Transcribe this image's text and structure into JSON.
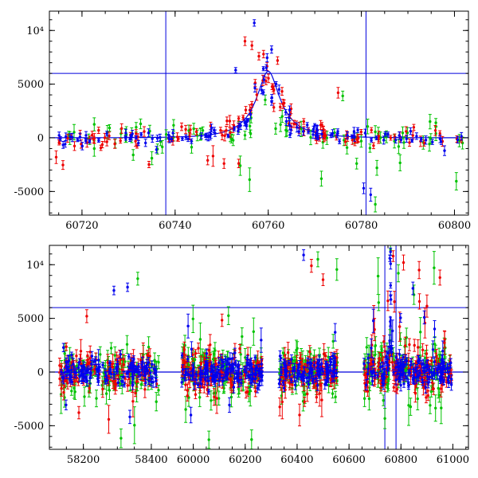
{
  "figure": {
    "background": "#ffffff",
    "axis_color": "#000000",
    "accent_line_color": "#0000dd"
  },
  "chart_data": [
    {
      "id": "top-panel",
      "type": "scatter",
      "title": "",
      "xlabel": "",
      "ylabel": "",
      "xlim": [
        60713,
        60803
      ],
      "ylim": [
        -7200,
        11800
      ],
      "x_ticks": {
        "major": [
          60720,
          60740,
          60760,
          60780,
          60800
        ],
        "labels": [
          "60720",
          "60740",
          "60760",
          "60780",
          "60800"
        ],
        "minor_step": 5
      },
      "y_ticks": {
        "major": [
          -5000,
          0,
          5000,
          10000
        ],
        "labels": [
          "-5000",
          "0",
          "5000",
          "10⁴"
        ],
        "minor_step": 1000
      },
      "hlines": [
        6000
      ],
      "vlines": [
        60738,
        60781
      ],
      "line_color": "#0000dd",
      "model": {
        "type": "paczynski",
        "t0": 60760,
        "tE": 8,
        "u0": 0.3,
        "F": 2536
      },
      "cluster_fields": "x0,x1,n,sigma,err,amp,jit,tail_frac,tail_lo,tail_hi",
      "series": [
        {
          "name": "green",
          "color": "#00c300",
          "seed": 21,
          "clusters": [
            [
              60714,
              60803,
              78,
              600,
              500,
              0.45,
              0.2,
              0.05,
              -4300,
              -1400
            ]
          ],
          "outliers": [
            [
              60783,
              -6200,
              700
            ],
            [
              60779,
              -2400,
              500
            ],
            [
              60754,
              -2600,
              900
            ],
            [
              60756,
              -3900,
              1100
            ],
            [
              60776,
              3900,
              450
            ],
            [
              60731,
              -1600,
              500
            ],
            [
              60735,
              -1900,
              600
            ],
            [
              60796,
              1400,
              400
            ]
          ]
        },
        {
          "name": "red",
          "color": "#ee0000",
          "seed": 11,
          "clusters": [
            [
              60714,
              60803,
              95,
              420,
              330,
              1,
              0.12,
              0.02,
              -2600,
              -1000
            ],
            [
              60750,
              60772,
              30,
              520,
              360,
              1,
              0.3,
              0,
              0,
              0
            ]
          ],
          "outliers": [
            [
              60747,
              -2100,
              420
            ],
            [
              60750.5,
              -2400,
              450
            ],
            [
              60755,
              9000,
              400
            ],
            [
              60756.5,
              8600,
              380
            ],
            [
              60758,
              7600,
              350
            ],
            [
              60759,
              7800,
              350
            ],
            [
              60762,
              7200,
              350
            ],
            [
              60775,
              4200,
              500
            ]
          ]
        },
        {
          "name": "blue",
          "color": "#0000ee",
          "seed": 31,
          "clusters": [
            [
              60714,
              60803,
              95,
              300,
              260,
              1,
              0.15,
              0.01,
              -1800,
              -900
            ],
            [
              60751,
              60771,
              26,
              520,
              300,
              1,
              0.35,
              0,
              0,
              0
            ]
          ],
          "outliers": [
            [
              60757,
              10700,
              300
            ],
            [
              60753,
              6300,
              250
            ],
            [
              60780.5,
              -4700,
              500
            ],
            [
              60782,
              -5300,
              600
            ],
            [
              60736,
              -1100,
              300
            ]
          ]
        }
      ]
    },
    {
      "id": "bottom-panel",
      "type": "scatter",
      "title": "",
      "xlabel": "",
      "ylabel": "",
      "xlim": [
        58100,
        61060
      ],
      "x_segments": [
        [
          58100,
          58470,
          0.0,
          0.3
        ],
        [
          59930,
          61060,
          0.3,
          1.0
        ]
      ],
      "ylim": [
        -7200,
        11800
      ],
      "x_ticks": {
        "major": [
          58200,
          58400,
          60000,
          60200,
          60400,
          60600,
          60800,
          61000
        ],
        "labels": [
          "58200",
          "58400",
          "60000",
          "60200",
          "60400",
          "60600",
          "60800",
          "61000"
        ],
        "minor_step": 50
      },
      "y_ticks": {
        "major": [
          -5000,
          0,
          5000,
          10000
        ],
        "labels": [
          "-5000",
          "0",
          "5000",
          "10⁴"
        ],
        "minor_step": 1000
      },
      "hlines": [
        6000
      ],
      "vlines": [
        60738,
        60781
      ],
      "line_color": "#0000dd",
      "model": {
        "type": "paczynski",
        "t0": 60760,
        "tE": 8,
        "u0": 0.3,
        "F": 2536
      },
      "cluster_fields": "x0,x1,n,sigma,err,amp,jit,tail_frac,tail_lo,tail_hi",
      "series": [
        {
          "name": "green",
          "color": "#00c300",
          "seed": 22,
          "clusters": [
            [
              58130,
              58425,
              100,
              1150,
              650,
              0,
              0,
              0.06,
              -6600,
              6600
            ],
            [
              59955,
              60265,
              110,
              1150,
              650,
              0,
              0,
              0.07,
              -6600,
              6600
            ],
            [
              60330,
              60560,
              85,
              1150,
              650,
              0,
              0,
              0.07,
              -6600,
              10600
            ],
            [
              60655,
              60995,
              120,
              1200,
              700,
              0.4,
              0.2,
              0.08,
              -6600,
              11200
            ]
          ],
          "outliers": [
            [
              58360,
              8700,
              600
            ],
            [
              60480,
              10500,
              700
            ],
            [
              60760,
              11400,
              500
            ],
            [
              60790,
              9200,
              800
            ],
            [
              60850,
              7200,
              900
            ],
            [
              60060,
              -6300,
              800
            ]
          ]
        },
        {
          "name": "red",
          "color": "#ee0000",
          "seed": 12,
          "clusters": [
            [
              58130,
              58425,
              110,
              900,
              520,
              0,
              0,
              0.05,
              -5300,
              5300
            ],
            [
              59955,
              60265,
              120,
              900,
              520,
              0,
              0,
              0.05,
              -5300,
              5300
            ],
            [
              60330,
              60560,
              95,
              900,
              520,
              0,
              0,
              0.06,
              -5300,
              9800
            ],
            [
              60655,
              60995,
              135,
              950,
              550,
              1,
              0.25,
              0.1,
              1500,
              10800
            ]
          ],
          "outliers": [
            [
              58210,
              5200,
              600
            ],
            [
              60455,
              9900,
              600
            ],
            [
              60500,
              8600,
              550
            ],
            [
              60770,
              10800,
              500
            ],
            [
              60810,
              10200,
              700
            ],
            [
              60870,
              9500,
              800
            ],
            [
              60950,
              8800,
              700
            ]
          ]
        },
        {
          "name": "blue",
          "color": "#0000ee",
          "seed": 32,
          "clusters": [
            [
              58130,
              58425,
              130,
              650,
              360,
              0,
              0,
              0.04,
              -4500,
              5500
            ],
            [
              59955,
              60265,
              140,
              650,
              360,
              0,
              0,
              0.04,
              -4500,
              4500
            ],
            [
              60330,
              60560,
              100,
              650,
              360,
              0,
              0,
              0.04,
              -4500,
              6500
            ],
            [
              60655,
              60995,
              150,
              700,
              380,
              1,
              0.3,
              0.05,
              1500,
              9200
            ]
          ],
          "outliers": [
            [
              58290,
              7600,
              400
            ],
            [
              58330,
              7900,
              400
            ],
            [
              60425,
              10900,
              500
            ],
            [
              60760,
              11200,
              350
            ],
            [
              60757,
              10600,
              300
            ]
          ]
        }
      ]
    }
  ]
}
